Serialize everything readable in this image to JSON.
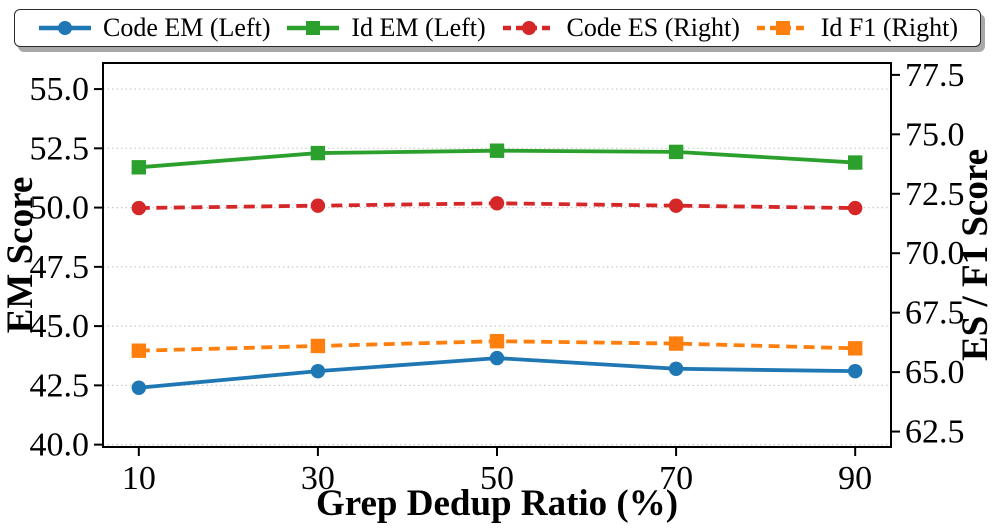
{
  "figure": {
    "background": "#ffffff",
    "text_color": "#000000"
  },
  "chart_data": {
    "type": "line",
    "title": "",
    "xlabel": "Grep Dedup Ratio (%)",
    "ylabel_left": "EM Score",
    "ylabel_right": "ES / F1 Score",
    "x": [
      10,
      30,
      50,
      70,
      90
    ],
    "xtick_labels": [
      "10",
      "30",
      "50",
      "70",
      "90"
    ],
    "xlim": [
      6,
      94
    ],
    "ylim_left": [
      39.9,
      56.1
    ],
    "ylim_right": [
      61.85,
      78.0
    ],
    "ytick_values_left": [
      40.0,
      42.5,
      45.0,
      47.5,
      50.0,
      52.5,
      55.0
    ],
    "ytick_labels_left": [
      "40.0",
      "42.5",
      "45.0",
      "47.5",
      "50.0",
      "52.5",
      "55.0"
    ],
    "ytick_values_right": [
      62.5,
      65.0,
      67.5,
      70.0,
      72.5,
      75.0,
      77.5
    ],
    "ytick_labels_right": [
      "62.5",
      "65.0",
      "67.5",
      "70.0",
      "72.5",
      "75.0",
      "77.5"
    ],
    "grid": {
      "axis": "y",
      "style": "dotted",
      "color": "#c9c9c9",
      "follows": "left-ticks"
    },
    "legend_position": "top-outside-horizontal",
    "series": [
      {
        "name": "Code EM (Left)",
        "axis": "left",
        "color": "#1f77b4",
        "marker": "circle",
        "line_style": "solid",
        "values": [
          42.4,
          43.1,
          43.65,
          43.2,
          43.1
        ]
      },
      {
        "name": "Id EM (Left)",
        "axis": "left",
        "color": "#2ca02c",
        "marker": "square",
        "line_style": "solid",
        "values": [
          51.7,
          52.3,
          52.4,
          52.35,
          51.9
        ]
      },
      {
        "name": "Code ES (Right)",
        "axis": "right",
        "color": "#d62728",
        "marker": "circle",
        "line_style": "dashed",
        "values": [
          71.9,
          72.0,
          72.1,
          72.0,
          71.9
        ]
      },
      {
        "name": "Id F1 (Right)",
        "axis": "right",
        "color": "#ff7f0e",
        "marker": "square",
        "line_style": "dashed",
        "values": [
          65.9,
          66.1,
          66.3,
          66.2,
          66.0
        ]
      }
    ]
  }
}
